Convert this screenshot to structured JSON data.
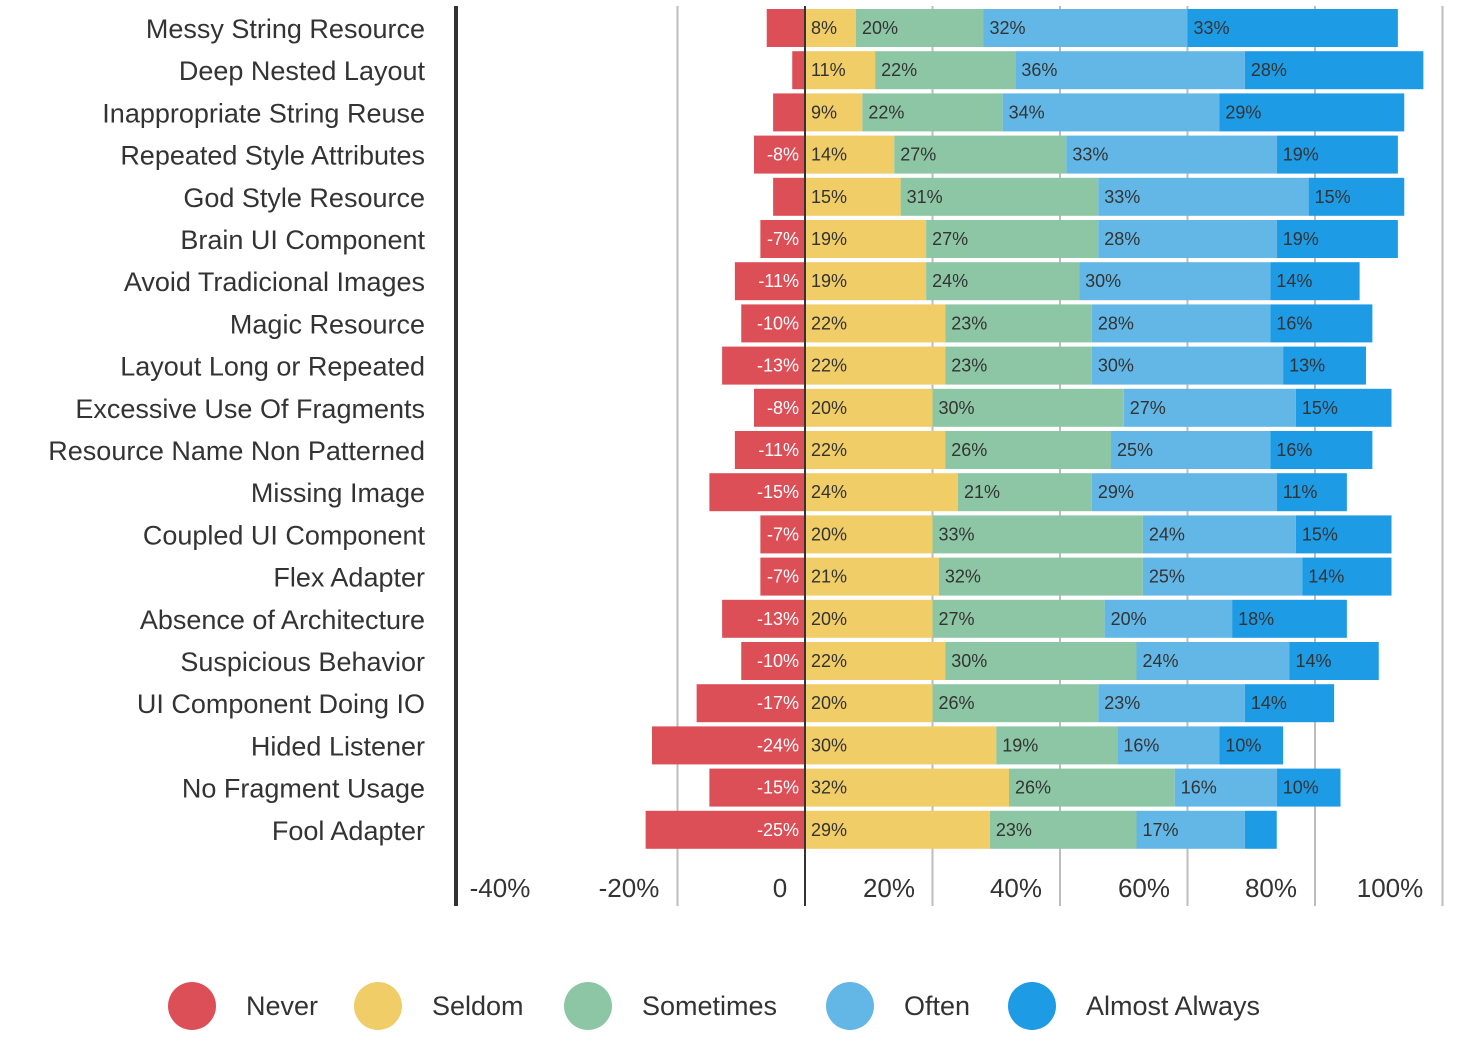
{
  "chart_data": {
    "type": "bar",
    "orientation": "horizontal",
    "stacked": "diverging",
    "categories": [
      "Messy String Resource",
      "Deep Nested Layout",
      "Inappropriate String Reuse",
      "Repeated Style Attributes",
      "God Style Resource",
      "Brain UI Component",
      "Avoid Tradicional Images",
      "Magic Resource",
      "Layout Long or Repeated",
      "Excessive Use Of Fragments",
      "Resource Name Non Patterned",
      "Missing Image",
      "Coupled UI Component",
      "Flex Adapter",
      "Absence of Architecture",
      "Suspicious Behavior",
      "UI Component Doing IO",
      "Hided Listener",
      "No Fragment Usage",
      "Fool Adapter"
    ],
    "series": [
      {
        "name": "Never",
        "color": "#DD4F57",
        "values": [
          -6,
          -2,
          -5,
          -8,
          -5,
          -7,
          -11,
          -10,
          -13,
          -8,
          -11,
          -15,
          -7,
          -7,
          -13,
          -10,
          -17,
          -24,
          -15,
          -25
        ],
        "labels": [
          "",
          "",
          "",
          "-8%",
          "",
          "-7%",
          "-11%",
          "-10%",
          "-13%",
          "-8%",
          "-11%",
          "-15%",
          "-7%",
          "-7%",
          "-13%",
          "-10%",
          "-17%",
          "-24%",
          "-15%",
          "-25%"
        ]
      },
      {
        "name": "Seldom",
        "color": "#F0CD67",
        "values": [
          8,
          11,
          9,
          14,
          15,
          19,
          19,
          22,
          22,
          20,
          22,
          24,
          20,
          21,
          20,
          22,
          20,
          30,
          32,
          29
        ],
        "labels": [
          "8%",
          "11%",
          "9%",
          "14%",
          "15%",
          "19%",
          "19%",
          "22%",
          "22%",
          "20%",
          "22%",
          "24%",
          "20%",
          "21%",
          "20%",
          "22%",
          "20%",
          "30%",
          "32%",
          "29%"
        ]
      },
      {
        "name": "Sometimes",
        "color": "#8DC6A5",
        "values": [
          20,
          22,
          22,
          27,
          31,
          27,
          24,
          23,
          23,
          30,
          26,
          21,
          33,
          32,
          27,
          30,
          26,
          19,
          26,
          23
        ],
        "labels": [
          "20%",
          "22%",
          "22%",
          "27%",
          "31%",
          "27%",
          "24%",
          "23%",
          "23%",
          "30%",
          "26%",
          "21%",
          "33%",
          "32%",
          "27%",
          "30%",
          "26%",
          "19%",
          "26%",
          "23%"
        ]
      },
      {
        "name": "Often",
        "color": "#63B7E6",
        "values": [
          32,
          36,
          34,
          33,
          33,
          28,
          30,
          28,
          30,
          27,
          25,
          29,
          24,
          25,
          20,
          24,
          23,
          16,
          16,
          17
        ],
        "labels": [
          "32%",
          "36%",
          "34%",
          "33%",
          "33%",
          "28%",
          "30%",
          "28%",
          "30%",
          "27%",
          "25%",
          "29%",
          "24%",
          "25%",
          "20%",
          "24%",
          "23%",
          "16%",
          "16%",
          "17%"
        ]
      },
      {
        "name": "Almost Always",
        "color": "#1E9BE5",
        "values": [
          33,
          28,
          29,
          19,
          15,
          19,
          14,
          16,
          13,
          15,
          16,
          11,
          15,
          14,
          18,
          14,
          14,
          10,
          10,
          5
        ],
        "labels": [
          "33%",
          "28%",
          "29%",
          "19%",
          "15%",
          "19%",
          "14%",
          "16%",
          "13%",
          "15%",
          "16%",
          "11%",
          "15%",
          "14%",
          "18%",
          "14%",
          "14%",
          "10%",
          "10%",
          ""
        ]
      }
    ],
    "x_ticks": [
      -40,
      -20,
      0,
      20,
      40,
      60,
      80,
      100
    ],
    "x_tick_labels": [
      "-40%",
      "-20%",
      "0",
      "20%",
      "40%",
      "60%",
      "80%",
      "100%"
    ],
    "xlim": [
      -55,
      100
    ],
    "grid": true,
    "legend_position": "bottom",
    "title": "",
    "xlabel": "",
    "ylabel": ""
  }
}
